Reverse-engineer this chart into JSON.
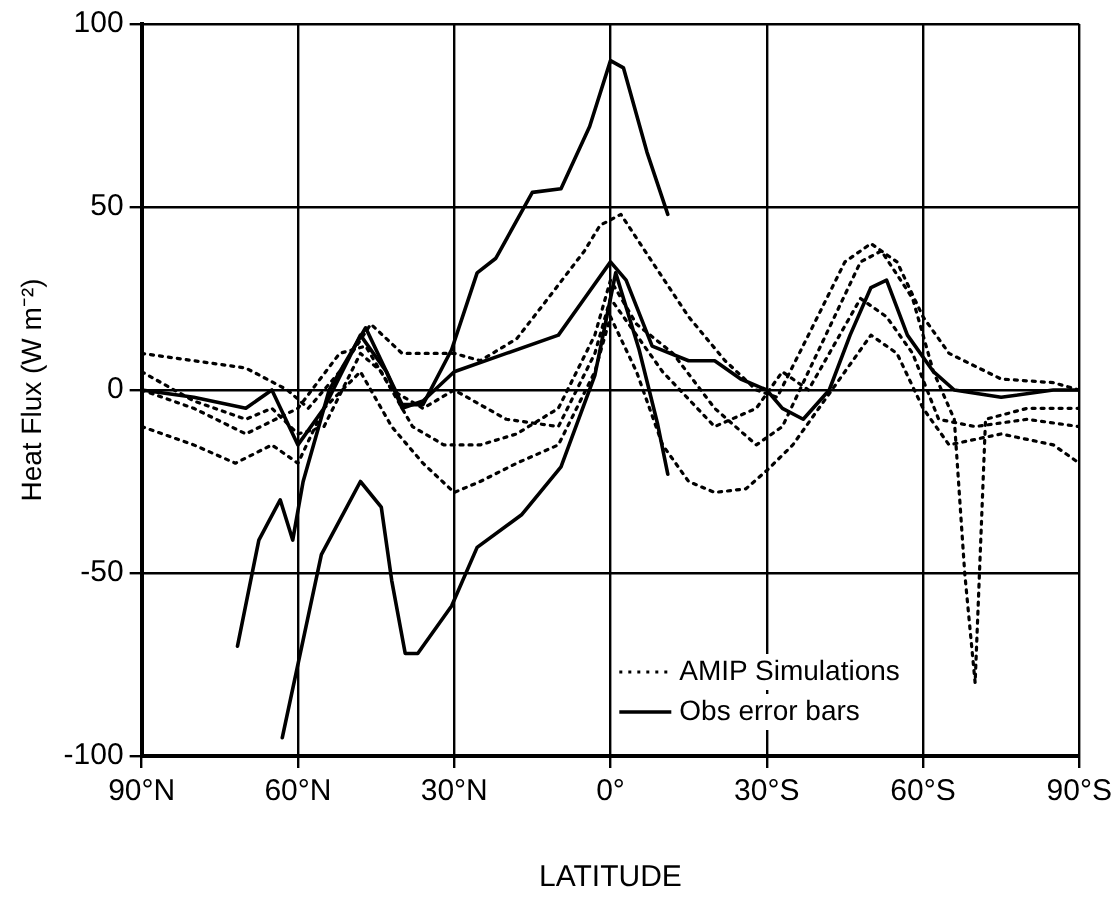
{
  "chart_data": {
    "type": "line",
    "xlabel": "LATITUDE",
    "ylabel": "Heat Flux (W m⁻²)",
    "xlim": [
      90,
      -90
    ],
    "xticks": [
      {
        "value": 90,
        "label": "90°N"
      },
      {
        "value": 60,
        "label": "60°N"
      },
      {
        "value": 30,
        "label": "30°N"
      },
      {
        "value": 0,
        "label": "0°"
      },
      {
        "value": -30,
        "label": "30°S"
      },
      {
        "value": -60,
        "label": "60°S"
      },
      {
        "value": -90,
        "label": "90°S"
      }
    ],
    "ylim": [
      -100,
      100
    ],
    "yticks": [
      -100,
      -50,
      0,
      50,
      100
    ],
    "grid": true,
    "legend": "bottom right",
    "marker": "none",
    "series": [
      {
        "name": "AMIP Simulations",
        "color": "#000000",
        "line_style": "dotted",
        "x": [
          90,
          80,
          70,
          62,
          58,
          52,
          46,
          40,
          34,
          30,
          25,
          18,
          12,
          5,
          2,
          -2,
          -8,
          -15,
          -22,
          -28,
          -32,
          -38,
          -45,
          -50,
          -55,
          -60,
          -65,
          -75,
          -85,
          -90
        ],
        "values": [
          10,
          8,
          6,
          0,
          -5,
          5,
          18,
          10,
          10,
          10,
          8,
          14,
          25,
          38,
          45,
          48,
          35,
          20,
          8,
          0,
          -2,
          15,
          35,
          40,
          35,
          20,
          10,
          3,
          2,
          0
        ]
      },
      {
        "color": "#000000",
        "line_style": "dotted",
        "x": [
          90,
          80,
          70,
          65,
          60,
          55,
          48,
          44,
          38,
          32,
          25,
          18,
          10,
          3,
          0,
          -5,
          -12,
          -20,
          -28,
          -33,
          -38,
          -43,
          -48,
          -52,
          -58,
          -62,
          -66,
          -68,
          -70,
          -72,
          -80,
          -90
        ],
        "values": [
          5,
          -3,
          -8,
          -5,
          -12,
          -10,
          10,
          5,
          -10,
          -15,
          -15,
          -12,
          -5,
          15,
          30,
          18,
          10,
          -5,
          -15,
          -10,
          5,
          20,
          35,
          38,
          25,
          5,
          -8,
          -50,
          -80,
          -8,
          -5,
          -5
        ]
      },
      {
        "color": "#000000",
        "line_style": "dotted",
        "x": [
          90,
          80,
          72,
          65,
          60,
          55,
          48,
          42,
          36,
          30,
          25,
          18,
          10,
          3,
          0,
          -5,
          -10,
          -15,
          -20,
          -26,
          -30,
          -35,
          -40,
          -45,
          -50,
          -55,
          -60,
          -65,
          -75,
          -85,
          -90
        ],
        "values": [
          -10,
          -15,
          -20,
          -15,
          -20,
          -5,
          5,
          -10,
          -20,
          -28,
          -25,
          -20,
          -15,
          5,
          20,
          5,
          -15,
          -25,
          -28,
          -27,
          -22,
          -15,
          -5,
          5,
          15,
          10,
          -5,
          -15,
          -12,
          -15,
          -20
        ]
      },
      {
        "color": "#000000",
        "line_style": "dotted",
        "x": [
          90,
          80,
          70,
          60,
          52,
          47,
          42,
          36,
          30,
          20,
          10,
          3,
          0,
          -5,
          -10,
          -20,
          -28,
          -33,
          -38,
          -42,
          -48,
          -53,
          -58,
          -63,
          -70,
          -80,
          -90
        ],
        "values": [
          0,
          -5,
          -12,
          -5,
          10,
          12,
          0,
          -5,
          0,
          -8,
          -10,
          10,
          25,
          15,
          5,
          -10,
          -5,
          5,
          0,
          10,
          25,
          20,
          10,
          -8,
          -10,
          -8,
          -10
        ]
      },
      {
        "name": "Obs error bars",
        "color": "#000000",
        "line_style": "solid",
        "x": [
          71.6,
          67.5,
          63.4,
          61,
          59,
          54,
          47,
          40,
          36,
          30.5,
          25.6,
          22,
          15,
          9.5,
          4,
          0,
          -2.5,
          -7,
          -11
        ],
        "values": [
          -70,
          -41,
          -30,
          -41,
          -25,
          0,
          17,
          -4,
          -4,
          11,
          32,
          36,
          54,
          55,
          72,
          90,
          88,
          65,
          48
        ]
      },
      {
        "color": "#000000",
        "line_style": "solid",
        "x": [
          63,
          55.5,
          48,
          44,
          42,
          39.4,
          37,
          30.5,
          25.6,
          17,
          9.5,
          3,
          -1,
          -5.5,
          -9,
          -11
        ],
        "values": [
          -95,
          -45,
          -25,
          -32,
          -52,
          -72,
          -72,
          -59,
          -43,
          -34,
          -21,
          4,
          32,
          11,
          -9,
          -23
        ]
      },
      {
        "color": "#000000",
        "line_style": "solid",
        "x": [
          90,
          80,
          70,
          65,
          60,
          55,
          48,
          43,
          40,
          36,
          30,
          20,
          10,
          5,
          0,
          -3,
          -8,
          -15,
          -20,
          -25,
          -30,
          -33,
          -37,
          -42,
          -46,
          -50,
          -53,
          -57,
          -62,
          -66,
          -75,
          -85,
          -90
        ],
        "values": [
          0,
          -2,
          -5,
          0,
          -15,
          -5,
          15,
          5,
          -5,
          -3,
          5,
          10,
          15,
          25,
          35,
          30,
          12,
          8,
          8,
          3,
          0,
          -5,
          -8,
          0,
          15,
          28,
          30,
          15,
          5,
          0,
          -2,
          0,
          0
        ]
      }
    ]
  }
}
